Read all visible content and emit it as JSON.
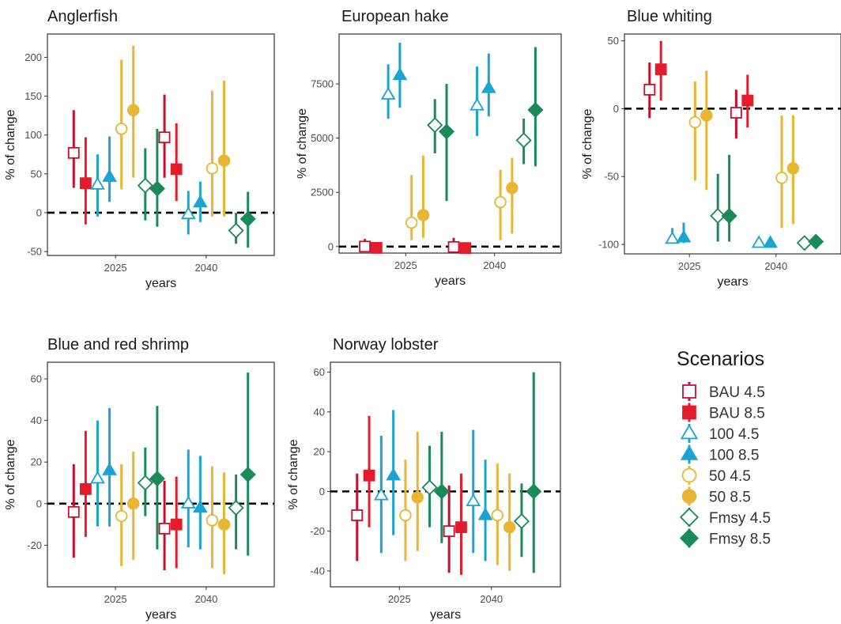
{
  "chart_data": {
    "type": "scatter",
    "legend": {
      "title": "Scenarios",
      "placement": "right",
      "entries": [
        {
          "label": "BAU 4.5",
          "color": "#C8102E",
          "shape": "square",
          "filled": false
        },
        {
          "label": "BAU 8.5",
          "color": "#E31C2C",
          "shape": "square",
          "filled": true
        },
        {
          "label": "100 4.5",
          "color": "#1BA3D1",
          "shape": "triangle",
          "filled": false
        },
        {
          "label": "100 8.5",
          "color": "#1BA3D1",
          "shape": "triangle",
          "filled": true
        },
        {
          "label": "50 4.5",
          "color": "#E8B634",
          "shape": "circle",
          "filled": false
        },
        {
          "label": "50 8.5",
          "color": "#E8B634",
          "shape": "circle",
          "filled": true
        },
        {
          "label": "Fmsy 4.5",
          "color": "#1B8A5A",
          "shape": "diamond",
          "filled": false
        },
        {
          "label": "Fmsy 8.5",
          "color": "#1B8A5A",
          "shape": "diamond",
          "filled": true
        }
      ]
    },
    "panels": [
      {
        "title": "Anglerfish",
        "xlabel": "years",
        "ylabel": "% of change",
        "categories": [
          "2025",
          "2040"
        ],
        "ylim": [
          -55,
          230
        ],
        "yticks": [
          -50,
          0,
          50,
          100,
          150,
          200
        ],
        "reference_line": 0,
        "series": [
          {
            "name": "BAU 4.5",
            "values": [
              77,
              97
            ],
            "low": [
              32,
              45
            ],
            "high": [
              132,
              152
            ]
          },
          {
            "name": "BAU 8.5",
            "values": [
              38,
              56
            ],
            "low": [
              -15,
              15
            ],
            "high": [
              97,
              115
            ]
          },
          {
            "name": "100 4.5",
            "values": [
              36,
              -2
            ],
            "low": [
              -5,
              -28
            ],
            "high": [
              75,
              28
            ]
          },
          {
            "name": "100 8.5",
            "values": [
              46,
              13
            ],
            "low": [
              14,
              -12
            ],
            "high": [
              98,
              40
            ]
          },
          {
            "name": "50 4.5",
            "values": [
              108,
              57
            ],
            "low": [
              30,
              -5
            ],
            "high": [
              197,
              157
            ]
          },
          {
            "name": "50 8.5",
            "values": [
              132,
              67
            ],
            "low": [
              45,
              -5
            ],
            "high": [
              215,
              170
            ]
          },
          {
            "name": "Fmsy 4.5",
            "values": [
              35,
              -23
            ],
            "low": [
              -10,
              -40
            ],
            "high": [
              83,
              0
            ]
          },
          {
            "name": "Fmsy 8.5",
            "values": [
              31,
              -8
            ],
            "low": [
              -18,
              -45
            ],
            "high": [
              108,
              27
            ]
          }
        ]
      },
      {
        "title": "European hake",
        "xlabel": "years",
        "ylabel": "% of change",
        "categories": [
          "2025",
          "2040"
        ],
        "ylim": [
          -300,
          9800
        ],
        "yticks": [
          0,
          2500,
          5000,
          7500
        ],
        "reference_line": 0,
        "series": [
          {
            "name": "BAU 4.5",
            "values": [
              0,
              -20
            ],
            "low": [
              -150,
              -150
            ],
            "high": [
              350,
              400
            ]
          },
          {
            "name": "BAU 8.5",
            "values": [
              -60,
              -70
            ],
            "low": [
              -200,
              -200
            ],
            "high": [
              200,
              200
            ]
          },
          {
            "name": "100 4.5",
            "values": [
              7000,
              6500
            ],
            "low": [
              5900,
              5100
            ],
            "high": [
              8400,
              8300
            ]
          },
          {
            "name": "100 8.5",
            "values": [
              7900,
              7300
            ],
            "low": [
              6400,
              6000
            ],
            "high": [
              9400,
              8900
            ]
          },
          {
            "name": "50 4.5",
            "values": [
              1100,
              2050
            ],
            "low": [
              300,
              300
            ],
            "high": [
              3300,
              3550
            ]
          },
          {
            "name": "50 8.5",
            "values": [
              1450,
              2700
            ],
            "low": [
              400,
              600
            ],
            "high": [
              4200,
              4100
            ]
          },
          {
            "name": "Fmsy 4.5",
            "values": [
              5600,
              4900
            ],
            "low": [
              4300,
              3800
            ],
            "high": [
              6800,
              5900
            ]
          },
          {
            "name": "Fmsy 8.5",
            "values": [
              5300,
              6300
            ],
            "low": [
              2100,
              3700
            ],
            "high": [
              7500,
              9200
            ]
          }
        ]
      },
      {
        "title": "Blue whiting",
        "xlabel": "years",
        "ylabel": "% of change",
        "categories": [
          "2025",
          "2040"
        ],
        "ylim": [
          -107,
          55
        ],
        "yticks": [
          -100,
          -50,
          0,
          50
        ],
        "reference_line": 0,
        "series": [
          {
            "name": "BAU 4.5",
            "values": [
              14,
              -3
            ],
            "low": [
              -7,
              -22
            ],
            "high": [
              34,
              14
            ]
          },
          {
            "name": "BAU 8.5",
            "values": [
              29,
              6
            ],
            "low": [
              6,
              -14
            ],
            "high": [
              50,
              25
            ]
          },
          {
            "name": "100 4.5",
            "values": [
              -96,
              -99
            ],
            "low": [
              -99,
              -100
            ],
            "high": [
              -88,
              -96
            ]
          },
          {
            "name": "100 8.5",
            "values": [
              -95,
              -99
            ],
            "low": [
              -99,
              -100
            ],
            "high": [
              -84,
              -96
            ]
          },
          {
            "name": "50 4.5",
            "values": [
              -10,
              -51
            ],
            "low": [
              -53,
              -88
            ],
            "high": [
              20,
              -5
            ]
          },
          {
            "name": "50 8.5",
            "values": [
              -5,
              -44
            ],
            "low": [
              -60,
              -85
            ],
            "high": [
              28,
              -5
            ]
          },
          {
            "name": "Fmsy 4.5",
            "values": [
              -79,
              -99
            ],
            "low": [
              -98,
              -100
            ],
            "high": [
              -48,
              -97
            ]
          },
          {
            "name": "Fmsy 8.5",
            "values": [
              -79,
              -98
            ],
            "low": [
              -98,
              -100
            ],
            "high": [
              -34,
              -96
            ]
          }
        ]
      },
      {
        "title": "Blue and red shrimp",
        "xlabel": "years",
        "ylabel": "% of change",
        "categories": [
          "2025",
          "2040"
        ],
        "ylim": [
          -40,
          68
        ],
        "yticks": [
          -20,
          0,
          20,
          40,
          60
        ],
        "reference_line": 0,
        "series": [
          {
            "name": "BAU 4.5",
            "values": [
              -4,
              -12
            ],
            "low": [
              -26,
              -32
            ],
            "high": [
              19,
              11
            ]
          },
          {
            "name": "BAU 8.5",
            "values": [
              7,
              -10
            ],
            "low": [
              -16,
              -31
            ],
            "high": [
              35,
              13
            ]
          },
          {
            "name": "100 4.5",
            "values": [
              12,
              0
            ],
            "low": [
              -11,
              -21
            ],
            "high": [
              40,
              26
            ]
          },
          {
            "name": "100 8.5",
            "values": [
              16,
              -2
            ],
            "low": [
              -11,
              -22
            ],
            "high": [
              46,
              23
            ]
          },
          {
            "name": "50 4.5",
            "values": [
              -6,
              -8
            ],
            "low": [
              -30,
              -31
            ],
            "high": [
              19,
              18
            ]
          },
          {
            "name": "50 8.5",
            "values": [
              0,
              -10
            ],
            "low": [
              -27,
              -34
            ],
            "high": [
              25,
              15
            ]
          },
          {
            "name": "Fmsy 4.5",
            "values": [
              10,
              -2
            ],
            "low": [
              -6,
              -22
            ],
            "high": [
              27,
              14
            ]
          },
          {
            "name": "Fmsy 8.5",
            "values": [
              12,
              14
            ],
            "low": [
              -22,
              -25
            ],
            "high": [
              47,
              63
            ]
          }
        ]
      },
      {
        "title": "Norway lobster",
        "xlabel": "years",
        "ylabel": "% of change",
        "categories": [
          "2025",
          "2040"
        ],
        "ylim": [
          -48,
          65
        ],
        "yticks": [
          -40,
          -20,
          0,
          20,
          40,
          60
        ],
        "reference_line": 0,
        "series": [
          {
            "name": "BAU 4.5",
            "values": [
              -12,
              -20
            ],
            "low": [
              -35,
              -41
            ],
            "high": [
              9,
              3
            ]
          },
          {
            "name": "BAU 8.5",
            "values": [
              8,
              -18
            ],
            "low": [
              -18,
              -42
            ],
            "high": [
              38,
              9
            ]
          },
          {
            "name": "100 4.5",
            "values": [
              -2,
              -5
            ],
            "low": [
              -31,
              -31
            ],
            "high": [
              28,
              31
            ]
          },
          {
            "name": "100 8.5",
            "values": [
              8,
              -12
            ],
            "low": [
              -22,
              -35
            ],
            "high": [
              41,
              16
            ]
          },
          {
            "name": "50 4.5",
            "values": [
              -12,
              -12
            ],
            "low": [
              -35,
              -37
            ],
            "high": [
              16,
              14
            ]
          },
          {
            "name": "50 8.5",
            "values": [
              -3,
              -18
            ],
            "low": [
              -30,
              -40
            ],
            "high": [
              30,
              9
            ]
          },
          {
            "name": "Fmsy 4.5",
            "values": [
              2,
              -15
            ],
            "low": [
              -18,
              -33
            ],
            "high": [
              23,
              4
            ]
          },
          {
            "name": "Fmsy 8.5",
            "values": [
              0,
              0
            ],
            "low": [
              -26,
              -41
            ],
            "high": [
              30,
              60
            ]
          }
        ]
      }
    ]
  }
}
